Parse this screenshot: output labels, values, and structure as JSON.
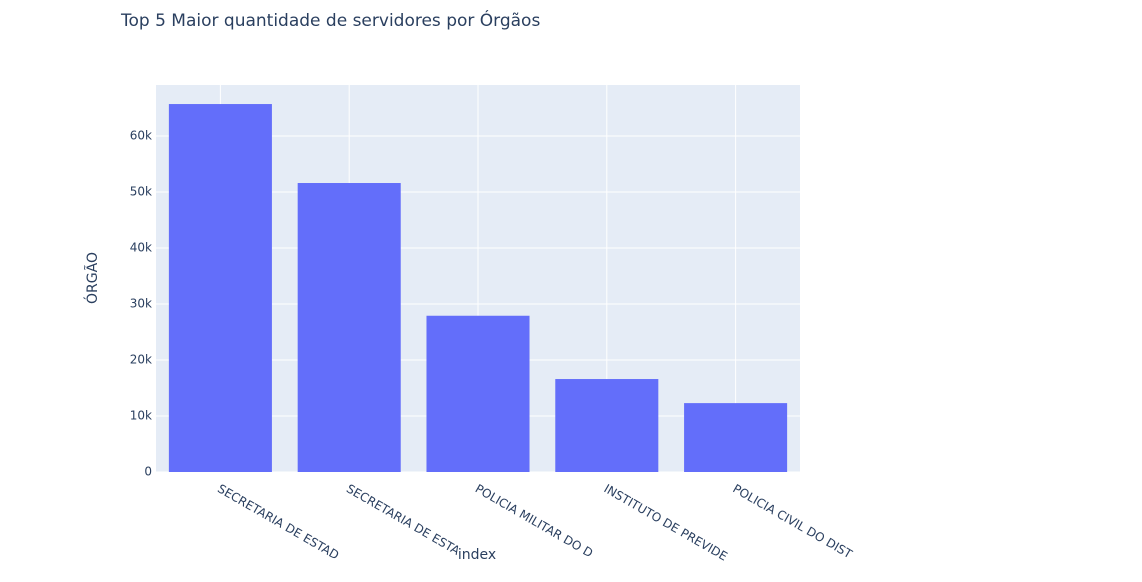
{
  "chart_data": {
    "type": "bar",
    "title": "Top 5 Maior quantidade de servidores por Órgãos",
    "x_label": "index",
    "y_label": "ÓRGÃO",
    "categories": [
      "SECRETARIA DE ESTAD",
      "SECRETARIA DE ESTA",
      "POLICIA MILITAR DO D",
      "INSTITUTO DE PREVIDE",
      "POLICIA CIVIL DO DIST"
    ],
    "values": [
      65700,
      51600,
      27900,
      16600,
      12300
    ],
    "color": "#636efa",
    "ylim": [
      0,
      69100
    ],
    "yticks": [
      0,
      {
        "value": 10000,
        "label": "10k"
      },
      {
        "value": 20000,
        "label": "20k"
      },
      {
        "value": 30000,
        "label": "30k"
      },
      {
        "value": 40000,
        "label": "40k"
      },
      {
        "value": 50000,
        "label": "50k"
      },
      {
        "value": 60000,
        "label": "60k"
      }
    ],
    "grid": true
  }
}
